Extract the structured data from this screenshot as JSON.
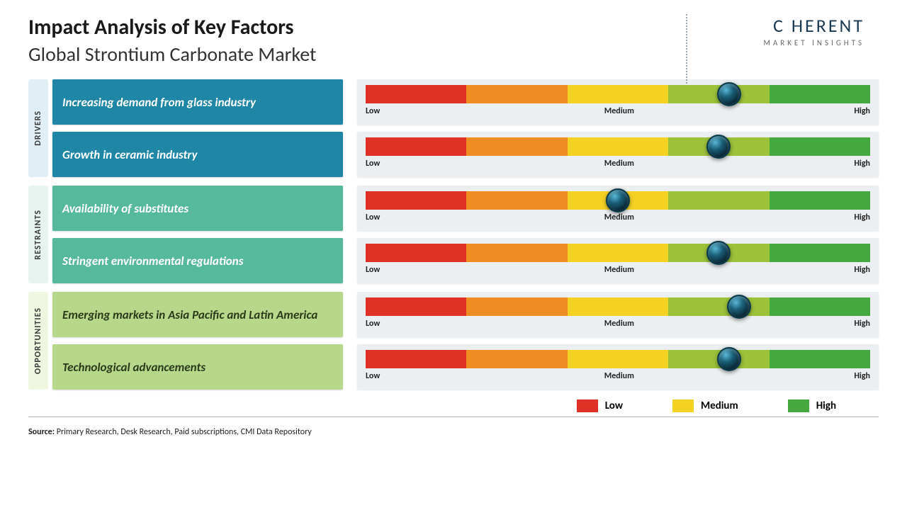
{
  "header": {
    "title": "Impact Analysis of Key Factors",
    "subtitle": "Global Strontium Carbonate Market",
    "logo_name": "C   HERENT",
    "logo_tag": "MARKET INSIGHTS"
  },
  "gauge": {
    "segment_colors": [
      "#e03127",
      "#f08c22",
      "#f4d223",
      "#9cc23a",
      "#46a93f"
    ],
    "labels": {
      "low": "Low",
      "medium": "Medium",
      "high": "High"
    },
    "row_bg": "#eceff1"
  },
  "groups": [
    {
      "key": "drivers",
      "label": "DRIVERS",
      "tab_bg": "#e0eef5",
      "tab_text": "#3a3a3a",
      "factor_bg": "#1f87a5",
      "factor_text": "#ffffff",
      "rows": [
        {
          "label": "Increasing demand from glass industry",
          "marker_pct": 72
        },
        {
          "label": "Growth in ceramic industry",
          "marker_pct": 70
        }
      ]
    },
    {
      "key": "restraints",
      "label": "RESTRAINTS",
      "tab_bg": "#e6f3ee",
      "tab_text": "#3a3a3a",
      "factor_bg": "#57b99c",
      "factor_text": "#ffffff",
      "rows": [
        {
          "label": "Availability of substitutes",
          "marker_pct": 50
        },
        {
          "label": "Stringent environmental regulations",
          "marker_pct": 70
        }
      ]
    },
    {
      "key": "opportunities",
      "label": "OPPORTUNITIES",
      "tab_bg": "#eef6e0",
      "tab_text": "#3a3a3a",
      "factor_bg": "#b7d88a",
      "factor_text": "#2a3a1a",
      "rows": [
        {
          "label": "Emerging markets in Asia Pacific and Latin America",
          "marker_pct": 74
        },
        {
          "label": "Technological advancements",
          "marker_pct": 72
        }
      ]
    }
  ],
  "legend": {
    "items": [
      {
        "label": "Low",
        "color": "#e03127"
      },
      {
        "label": "Medium",
        "color": "#f4d223"
      },
      {
        "label": "High",
        "color": "#46a93f"
      }
    ]
  },
  "source": {
    "prefix": "Source:",
    "text": " Primary Research, Desk Research, Paid subscriptions, CMI Data Repository"
  }
}
